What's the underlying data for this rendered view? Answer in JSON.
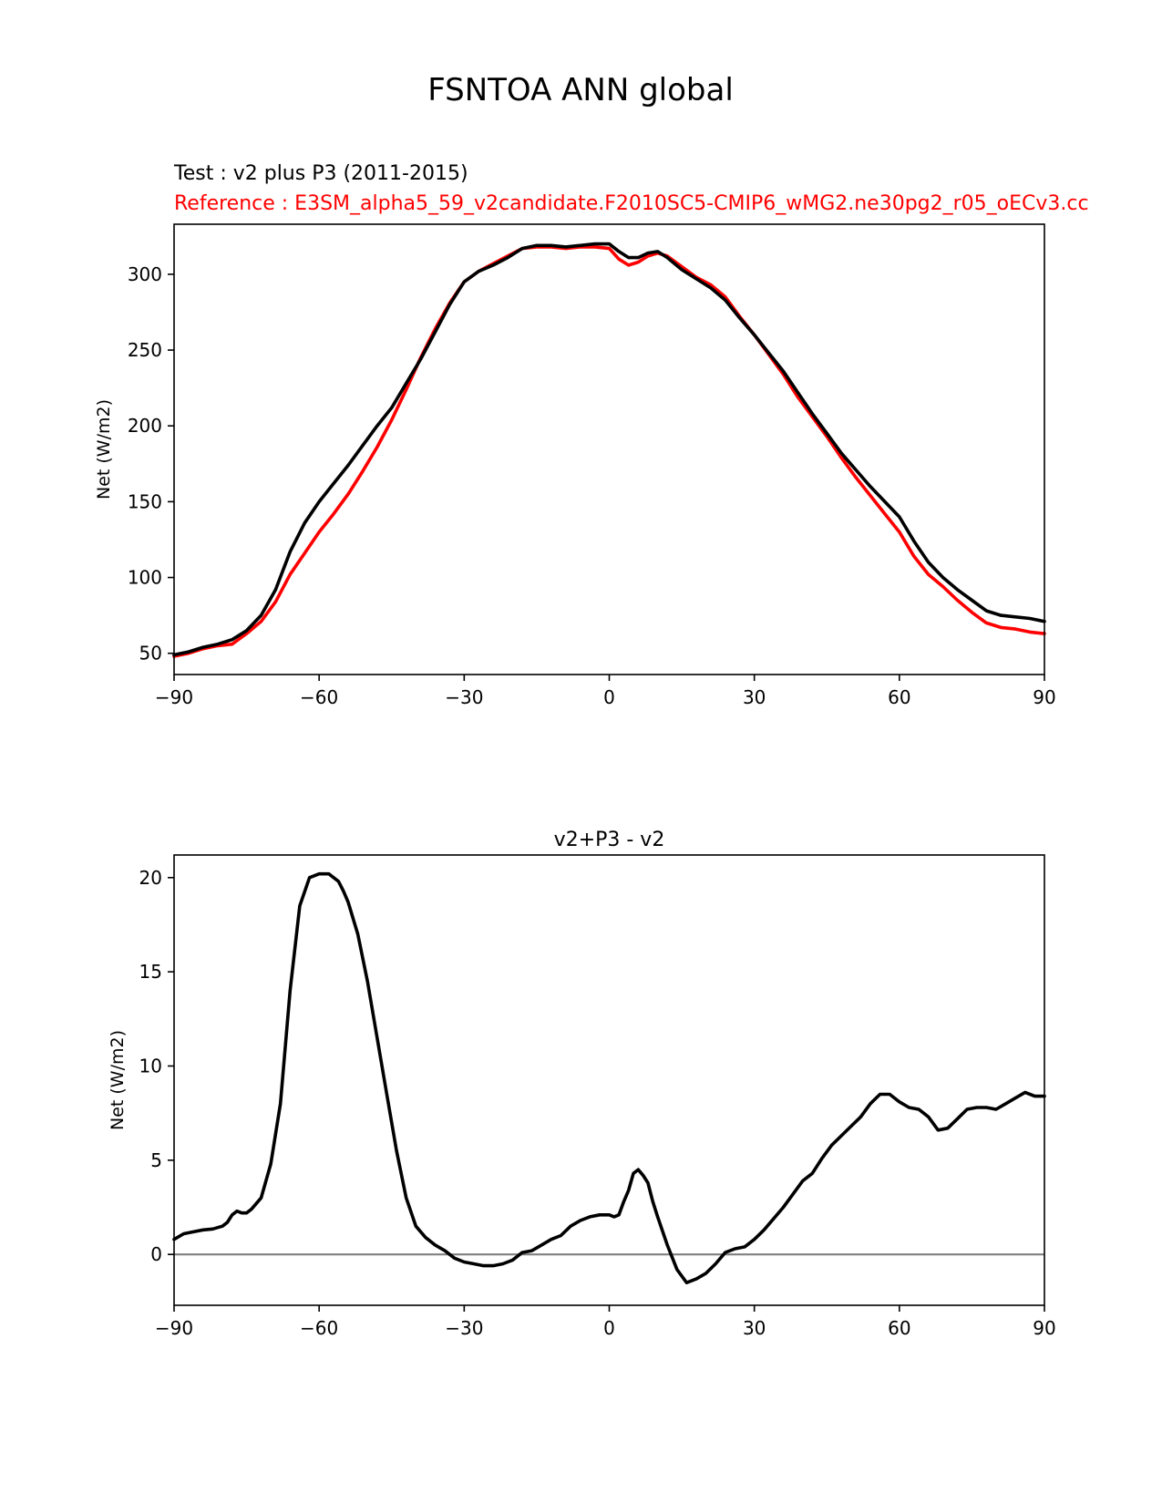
{
  "figure": {
    "title": "FSNTOA ANN global",
    "test_label": "Test : v2 plus P3 (2011-2015)",
    "reference_label": "Reference : E3SM_alpha5_59_v2candidate.F2010SC5-CMIP6_wMG2.ne30pg2_r05_oECv3.cc"
  },
  "chart_data": [
    {
      "type": "line",
      "title": "",
      "xlabel": "",
      "ylabel": "Net (W/m2)",
      "xlim": [
        -90,
        90
      ],
      "ylim": [
        36,
        333
      ],
      "xticks": [
        -90,
        -60,
        -30,
        0,
        30,
        60,
        90
      ],
      "xtick_labels": [
        "−90",
        "−60",
        "−30",
        "0",
        "30",
        "60",
        "90"
      ],
      "yticks": [
        50,
        100,
        150,
        200,
        250,
        300
      ],
      "ytick_labels": [
        "50",
        "100",
        "150",
        "200",
        "250",
        "300"
      ],
      "series": [
        {
          "name": "Reference",
          "color": "#ff0000",
          "x": [
            -90,
            -87,
            -84,
            -81,
            -78,
            -75,
            -72,
            -69,
            -66,
            -63,
            -60,
            -57,
            -54,
            -51,
            -48,
            -45,
            -42,
            -39,
            -36,
            -33,
            -30,
            -27,
            -24,
            -21,
            -18,
            -15,
            -12,
            -9,
            -6,
            -3,
            0,
            2,
            4,
            6,
            8,
            10,
            12,
            15,
            18,
            21,
            24,
            27,
            30,
            33,
            36,
            39,
            42,
            45,
            48,
            51,
            54,
            57,
            60,
            63,
            66,
            69,
            72,
            75,
            78,
            81,
            84,
            87,
            90
          ],
          "y": [
            48,
            50,
            53,
            55,
            56,
            63,
            71,
            84,
            102,
            116,
            130,
            142,
            155,
            170,
            186,
            204,
            224,
            245,
            264,
            281,
            295,
            302,
            307,
            312,
            317,
            318,
            318,
            317,
            318,
            318,
            317,
            310,
            306,
            308,
            312,
            314,
            312,
            305,
            298,
            293,
            285,
            272,
            260,
            247,
            234,
            219,
            206,
            193,
            179,
            166,
            154,
            142,
            130,
            114,
            102,
            94,
            85,
            77,
            70,
            67,
            66,
            64,
            63
          ]
        },
        {
          "name": "Test",
          "color": "#000000",
          "x": [
            -90,
            -87,
            -84,
            -81,
            -78,
            -75,
            -72,
            -69,
            -66,
            -63,
            -60,
            -57,
            -54,
            -51,
            -48,
            -45,
            -42,
            -39,
            -36,
            -33,
            -30,
            -27,
            -24,
            -21,
            -18,
            -15,
            -12,
            -9,
            -6,
            -3,
            0,
            2,
            4,
            6,
            8,
            10,
            12,
            15,
            18,
            21,
            24,
            27,
            30,
            33,
            36,
            39,
            42,
            45,
            48,
            51,
            54,
            57,
            60,
            63,
            66,
            69,
            72,
            75,
            78,
            81,
            84,
            87,
            90
          ],
          "y": [
            49,
            51,
            54,
            56,
            59,
            65,
            75,
            92,
            117,
            136,
            150,
            162,
            174,
            187,
            200,
            212,
            228,
            244,
            262,
            280,
            295,
            302,
            306,
            311,
            317,
            319,
            319,
            318,
            319,
            320,
            320,
            315,
            311,
            311,
            314,
            315,
            311,
            303,
            297,
            291,
            283,
            271,
            260,
            248,
            236,
            222,
            208,
            195,
            182,
            171,
            160,
            150,
            140,
            124,
            110,
            100,
            92,
            85,
            78,
            75,
            74,
            73,
            71
          ]
        }
      ]
    },
    {
      "type": "line",
      "title": "v2+P3 - v2",
      "xlabel": "",
      "ylabel": "Net (W/m2)",
      "xlim": [
        -90,
        90
      ],
      "ylim": [
        -2.7,
        21.2
      ],
      "xticks": [
        -90,
        -60,
        -30,
        0,
        30,
        60,
        90
      ],
      "xtick_labels": [
        "−90",
        "−60",
        "−30",
        "0",
        "30",
        "60",
        "90"
      ],
      "yticks": [
        0,
        5,
        10,
        15,
        20
      ],
      "ytick_labels": [
        "0",
        "5",
        "10",
        "15",
        "20"
      ],
      "zero_line_color": "#808080",
      "series": [
        {
          "name": "v2+P3 - v2",
          "color": "#000000",
          "x": [
            -90,
            -88,
            -86,
            -84,
            -82,
            -80,
            -79,
            -78,
            -77,
            -76,
            -75,
            -74,
            -72,
            -70,
            -68,
            -66,
            -64,
            -62,
            -60,
            -58,
            -56,
            -55,
            -54,
            -52,
            -50,
            -48,
            -46,
            -44,
            -42,
            -40,
            -38,
            -36,
            -34,
            -32,
            -30,
            -28,
            -26,
            -24,
            -22,
            -20,
            -18,
            -16,
            -14,
            -12,
            -10,
            -8,
            -6,
            -4,
            -2,
            0,
            1,
            2,
            3,
            4,
            5,
            6,
            7,
            8,
            9,
            10,
            12,
            14,
            16,
            18,
            20,
            22,
            24,
            26,
            28,
            30,
            32,
            34,
            36,
            38,
            40,
            42,
            44,
            46,
            48,
            50,
            52,
            54,
            56,
            58,
            60,
            62,
            64,
            66,
            68,
            70,
            72,
            74,
            76,
            78,
            80,
            82,
            84,
            86,
            88,
            90
          ],
          "y": [
            0.8,
            1.1,
            1.2,
            1.3,
            1.35,
            1.5,
            1.7,
            2.1,
            2.3,
            2.2,
            2.2,
            2.4,
            3.0,
            4.8,
            8.0,
            14.0,
            18.5,
            20.0,
            20.2,
            20.2,
            19.8,
            19.3,
            18.7,
            17.0,
            14.5,
            11.5,
            8.5,
            5.5,
            3.0,
            1.5,
            0.9,
            0.5,
            0.2,
            -0.2,
            -0.4,
            -0.5,
            -0.6,
            -0.6,
            -0.5,
            -0.3,
            0.1,
            0.2,
            0.5,
            0.8,
            1.0,
            1.5,
            1.8,
            2.0,
            2.1,
            2.1,
            2.0,
            2.1,
            2.8,
            3.4,
            4.3,
            4.5,
            4.2,
            3.8,
            2.8,
            2.0,
            0.5,
            -0.8,
            -1.5,
            -1.3,
            -1.0,
            -0.5,
            0.1,
            0.3,
            0.4,
            0.8,
            1.3,
            1.9,
            2.5,
            3.2,
            3.9,
            4.3,
            5.1,
            5.8,
            6.3,
            6.8,
            7.3,
            8.0,
            8.5,
            8.5,
            8.1,
            7.8,
            7.7,
            7.3,
            6.6,
            6.7,
            7.2,
            7.7,
            7.8,
            7.8,
            7.7,
            8.0,
            8.3,
            8.6,
            8.4,
            8.4
          ]
        }
      ]
    }
  ]
}
